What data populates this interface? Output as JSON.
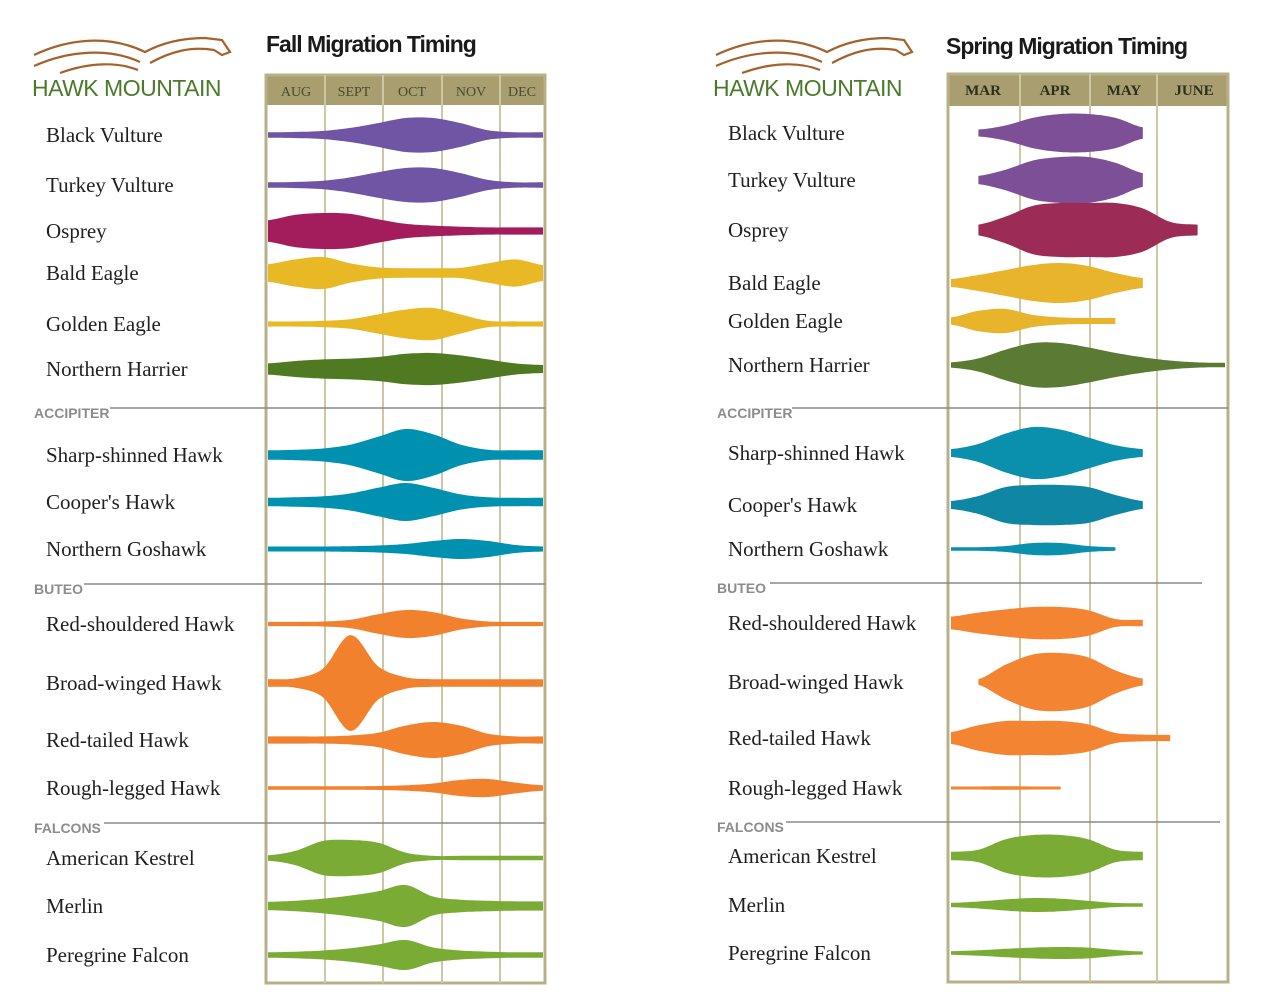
{
  "colors": {
    "frame": "#b8b08a",
    "header_bg": "#a89e70",
    "grid": "#cdc7a5",
    "divider": "#8a8a8a",
    "logo_brown": "#a5612b",
    "logo_green": "#4a7a2a"
  },
  "chart_data": [
    {
      "type": "violin-timeline",
      "logo": "HAWK MOUNTAIN",
      "title": "Fall Migration Timing",
      "months": [
        "AUG",
        "SEPT",
        "OCT",
        "NOV",
        "DEC"
      ],
      "sections": [
        "ACCIPITER",
        "BUTEO",
        "FALCONS"
      ],
      "species": [
        {
          "name": "Black Vulture",
          "color": "#6f55a3",
          "values": [
            0.16,
            0.18,
            0.24,
            0.42,
            0.7,
            1,
            1,
            0.7,
            0.28,
            0.16,
            0.16
          ]
        },
        {
          "name": "Turkey Vulture",
          "color": "#6f55a3",
          "values": [
            0.16,
            0.18,
            0.25,
            0.45,
            0.75,
            1,
            1,
            0.7,
            0.3,
            0.16,
            0.16
          ]
        },
        {
          "name": "Osprey",
          "color": "#a31d5c",
          "values": [
            0.6,
            0.9,
            1,
            0.95,
            0.65,
            0.4,
            0.3,
            0.24,
            0.2,
            0.2,
            0.2
          ]
        },
        {
          "name": "Bald Eagle",
          "color": "#e8b924",
          "values": [
            0.55,
            0.85,
            1,
            0.6,
            0.35,
            0.3,
            0.3,
            0.32,
            0.6,
            0.85,
            0.5
          ]
        },
        {
          "name": "Golden Eagle",
          "color": "#e8b924",
          "values": [
            0.16,
            0.16,
            0.2,
            0.3,
            0.6,
            0.9,
            1,
            0.6,
            0.2,
            0.16,
            0.16
          ]
        },
        {
          "name": "Northern Harrier",
          "color": "#4f7a22",
          "values": [
            0.35,
            0.5,
            0.6,
            0.65,
            0.75,
            0.95,
            1,
            0.85,
            0.6,
            0.35,
            0.25
          ]
        },
        {
          "name": "Sharp-shinned Hawk",
          "color": "#0090b0",
          "values": [
            0.18,
            0.2,
            0.25,
            0.4,
            0.7,
            1,
            0.8,
            0.4,
            0.2,
            0.18,
            0.18
          ]
        },
        {
          "name": "Cooper's Hawk",
          "color": "#0090b0",
          "values": [
            0.22,
            0.25,
            0.3,
            0.45,
            0.75,
            1,
            0.75,
            0.4,
            0.25,
            0.22,
            0.22
          ]
        },
        {
          "name": "Northern Goshawk",
          "color": "#0090b0",
          "values": [
            0.25,
            0.25,
            0.25,
            0.28,
            0.35,
            0.5,
            0.8,
            1,
            0.8,
            0.4,
            0.25
          ]
        },
        {
          "name": "Red-shouldered Hawk",
          "color": "#f2812e",
          "values": [
            0.15,
            0.15,
            0.18,
            0.3,
            0.7,
            1,
            0.85,
            0.4,
            0.18,
            0.15,
            0.15
          ]
        },
        {
          "name": "Broad-winged Hawk",
          "color": "#f2812e",
          "values": [
            0.08,
            0.1,
            0.3,
            1,
            0.35,
            0.12,
            0.08,
            0.08,
            0.08,
            0.08,
            0.08
          ]
        },
        {
          "name": "Red-tailed Hawk",
          "color": "#f2812e",
          "values": [
            0.2,
            0.2,
            0.2,
            0.25,
            0.4,
            0.8,
            1,
            0.8,
            0.35,
            0.2,
            0.2
          ]
        },
        {
          "name": "Rough-legged Hawk",
          "color": "#f2812e",
          "values": [
            0.2,
            0.2,
            0.2,
            0.2,
            0.22,
            0.3,
            0.5,
            0.9,
            1,
            0.6,
            0.3
          ]
        },
        {
          "name": "American Kestrel",
          "color": "#7aab35",
          "values": [
            0.15,
            0.4,
            0.95,
            1,
            0.85,
            0.3,
            0.12,
            0.12,
            0.12,
            0.12,
            0.12
          ]
        },
        {
          "name": "Merlin",
          "color": "#7aab35",
          "values": [
            0.2,
            0.25,
            0.35,
            0.5,
            0.7,
            1,
            0.45,
            0.3,
            0.25,
            0.22,
            0.22
          ]
        },
        {
          "name": "Peregrine Falcon",
          "color": "#7aab35",
          "values": [
            0.18,
            0.22,
            0.3,
            0.45,
            0.7,
            1,
            0.5,
            0.3,
            0.22,
            0.18,
            0.18
          ]
        }
      ]
    },
    {
      "type": "violin-timeline",
      "logo": "HAWK MOUNTAIN",
      "title": "Spring Migration Timing",
      "months": [
        "MAR",
        "APR",
        "MAY",
        "JUNE"
      ],
      "sections": [
        "ACCIPITER",
        "BUTEO",
        "FALCONS"
      ],
      "species": [
        {
          "name": "Black Vulture",
          "color": "#7c4f96",
          "values": [
            null,
            0.18,
            0.4,
            0.8,
            1,
            1,
            0.8,
            0.3,
            null,
            null,
            null
          ]
        },
        {
          "name": "Turkey Vulture",
          "color": "#7c4f96",
          "values": [
            null,
            0.18,
            0.45,
            0.85,
            1,
            1,
            0.75,
            0.3,
            null,
            null,
            null
          ]
        },
        {
          "name": "Osprey",
          "color": "#9c2c55",
          "values": [
            null,
            0.2,
            0.5,
            0.9,
            1,
            1,
            1,
            0.8,
            0.3,
            0.2,
            null
          ]
        },
        {
          "name": "Bald Eagle",
          "color": "#e8b42c",
          "values": [
            0.2,
            0.4,
            0.65,
            0.9,
            1,
            0.85,
            0.5,
            0.25,
            null,
            null,
            null
          ]
        },
        {
          "name": "Golden Eagle",
          "color": "#e8b42c",
          "values": [
            0.3,
            0.85,
            1,
            0.5,
            0.3,
            0.25,
            0.25,
            null,
            null,
            null,
            null
          ]
        },
        {
          "name": "Northern Harrier",
          "color": "#5b7a33",
          "values": [
            0.12,
            0.3,
            0.7,
            1,
            1,
            0.8,
            0.55,
            0.35,
            0.2,
            0.12,
            0.1
          ]
        },
        {
          "name": "Sharp-shinned Hawk",
          "color": "#0a8fad",
          "values": [
            0.15,
            0.35,
            0.75,
            1,
            0.9,
            0.6,
            0.3,
            0.15,
            null,
            null,
            null
          ]
        },
        {
          "name": "Cooper's Hawk",
          "color": "#0f86a3",
          "values": [
            0.2,
            0.45,
            0.9,
            1,
            1,
            0.9,
            0.5,
            0.2,
            null,
            null,
            null
          ]
        },
        {
          "name": "Northern Goshawk",
          "color": "#0a8fad",
          "values": [
            0.3,
            0.3,
            0.5,
            1,
            1,
            0.5,
            0.3,
            null,
            null,
            null,
            null
          ]
        },
        {
          "name": "Red-shouldered Hawk",
          "color": "#f28432",
          "values": [
            0.4,
            0.65,
            0.85,
            1,
            1,
            0.8,
            0.25,
            0.2,
            null,
            null,
            null
          ]
        },
        {
          "name": "Broad-winged Hawk",
          "color": "#f28432",
          "values": [
            null,
            0.1,
            0.6,
            0.95,
            1,
            0.85,
            0.4,
            0.12,
            null,
            null,
            null
          ]
        },
        {
          "name": "Red-tailed Hawk",
          "color": "#f28432",
          "values": [
            0.35,
            0.75,
            1,
            1,
            1,
            0.8,
            0.3,
            0.2,
            0.18,
            null,
            null
          ]
        },
        {
          "name": "Rough-legged Hawk",
          "color": "#f28432",
          "values": [
            0.5,
            0.5,
            0.6,
            0.5,
            0.5,
            null,
            null,
            null,
            null,
            null,
            null
          ]
        },
        {
          "name": "American Kestrel",
          "color": "#7aab35",
          "values": [
            0.2,
            0.3,
            0.8,
            1,
            1,
            0.8,
            0.3,
            0.2,
            null,
            null,
            null
          ]
        },
        {
          "name": "Merlin",
          "color": "#7aab35",
          "values": [
            0.3,
            0.5,
            0.8,
            1,
            0.9,
            0.6,
            0.3,
            0.25,
            null,
            null,
            null
          ]
        },
        {
          "name": "Peregrine Falcon",
          "color": "#7aab35",
          "values": [
            0.3,
            0.45,
            0.7,
            0.9,
            1,
            0.9,
            0.5,
            0.25,
            null,
            null,
            null
          ]
        }
      ]
    }
  ]
}
